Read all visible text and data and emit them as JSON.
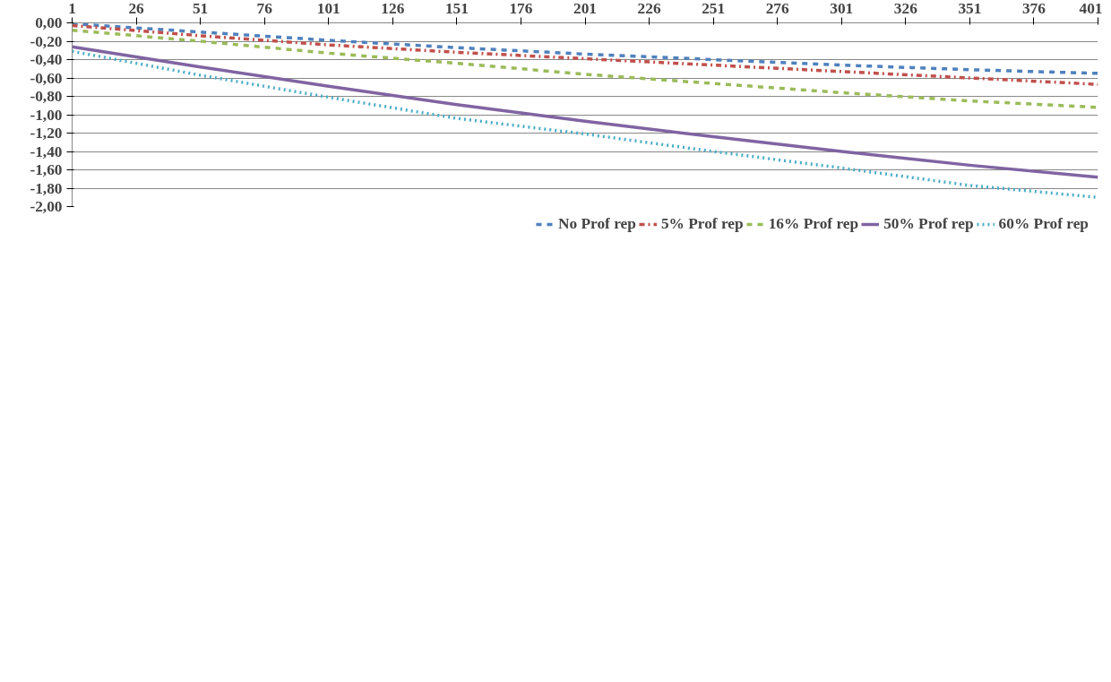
{
  "chart_data": {
    "type": "line",
    "x": [
      1,
      51,
      101,
      151,
      201,
      251,
      301,
      351,
      401
    ],
    "series": [
      {
        "name": "No Prof rep",
        "color": "#4f81bd",
        "line_style": "dashed",
        "values": [
          -0.01,
          -0.1,
          -0.19,
          -0.27,
          -0.34,
          -0.4,
          -0.46,
          -0.51,
          -0.55
        ]
      },
      {
        "name": "5% Prof rep",
        "color": "#c0504d",
        "line_style": "dashdot",
        "values": [
          -0.03,
          -0.14,
          -0.24,
          -0.32,
          -0.39,
          -0.46,
          -0.53,
          -0.6,
          -0.67
        ]
      },
      {
        "name": "16% Prof rep",
        "color": "#9bbb59",
        "line_style": "dashed",
        "values": [
          -0.08,
          -0.2,
          -0.33,
          -0.44,
          -0.56,
          -0.66,
          -0.76,
          -0.85,
          -0.92
        ]
      },
      {
        "name": "50% Prof rep",
        "color": "#8064a2",
        "line_style": "solid",
        "values": [
          -0.26,
          -0.48,
          -0.69,
          -0.89,
          -1.07,
          -1.24,
          -1.4,
          -1.55,
          -1.68
        ]
      },
      {
        "name": "60% Prof rep",
        "color": "#4bacc6",
        "line_style": "dotted",
        "values": [
          -0.31,
          -0.57,
          -0.81,
          -1.04,
          -1.21,
          -1.4,
          -1.58,
          -1.77,
          -1.9
        ]
      }
    ],
    "xlim": [
      1,
      401
    ],
    "xticks": [
      1,
      26,
      51,
      76,
      101,
      126,
      151,
      176,
      201,
      226,
      251,
      276,
      301,
      326,
      351,
      376,
      401
    ],
    "ylim": [
      -2.0,
      0.0
    ],
    "yticks": [
      {
        "value": 0,
        "label": "0,00"
      },
      {
        "value": -0.2,
        "label": "-0,20"
      },
      {
        "value": -0.4,
        "label": "-0,40"
      },
      {
        "value": -0.6,
        "label": "-0,60"
      },
      {
        "value": -0.8,
        "label": "-0,80"
      },
      {
        "value": -1.0,
        "label": "-1,00"
      },
      {
        "value": -1.2,
        "label": "-1,20"
      },
      {
        "value": -1.4,
        "label": "-1,40"
      },
      {
        "value": -1.6,
        "label": "-1,60"
      },
      {
        "value": -1.8,
        "label": "-1,80"
      },
      {
        "value": -2.0,
        "label": "-2,00"
      }
    ],
    "grid": "y",
    "legend": "bottom"
  }
}
